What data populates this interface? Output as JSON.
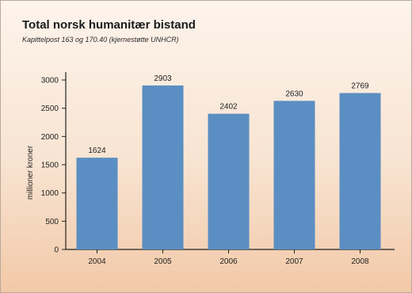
{
  "chart_data": {
    "type": "bar",
    "title": "Total norsk humanitær bistand",
    "subtitle": "Kapittelpost 163 og 170.40 (kjernestøtte UNHCR)",
    "xlabel": "",
    "ylabel": "millioner kroner",
    "categories": [
      "2004",
      "2005",
      "2006",
      "2007",
      "2008"
    ],
    "values": [
      1624,
      2903,
      2402,
      2630,
      2769
    ],
    "data_labels": [
      "1624",
      "2903",
      "2402",
      "2630",
      "2769"
    ],
    "ylim": [
      0,
      3000
    ],
    "yticks": [
      0,
      500,
      1000,
      1500,
      2000,
      2500,
      3000
    ],
    "ytick_labels": [
      "0",
      "500",
      "1000",
      "1500",
      "2000",
      "2500",
      "3000"
    ],
    "grid": false,
    "legend": "none",
    "bar_color": "#5b8ec2",
    "background_top": "#fdf4ec",
    "background_bottom": "#f2c9a8"
  }
}
